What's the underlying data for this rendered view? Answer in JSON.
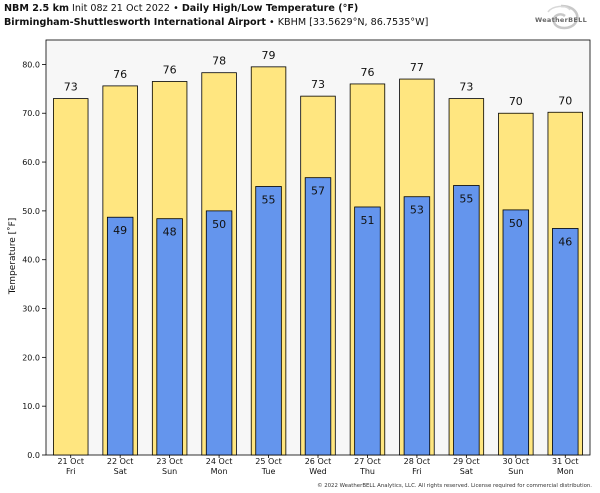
{
  "header": {
    "model": "NBM 2.5 km",
    "init": "Init 08z 21 Oct 2022",
    "product": "Daily High/Low Temperature (°F)",
    "station_name": "Birmingham-Shuttlesworth International Airport",
    "station_info": "KBHM [33.5629°N, 86.7535°W]",
    "bullet": "•"
  },
  "logo": {
    "text": "WeatherBELL"
  },
  "copyright": "© 2022 WeatherBELL Analytics, LLC. All rights reserved. License required for commercial distribution.",
  "colors": {
    "high": "#ffe680",
    "low": "#6495ed",
    "plot_bg": "#f7f7f7",
    "outline": "#000000"
  },
  "chart_data": {
    "type": "bar",
    "title": "Daily High/Low Temperature (°F)",
    "xlabel": "",
    "ylabel": "Temperature [˚F]",
    "ylim": [
      0,
      85
    ],
    "yticks": [
      "0.0",
      "10.0",
      "20.0",
      "30.0",
      "40.0",
      "50.0",
      "60.0",
      "70.0",
      "80.0"
    ],
    "grid": false,
    "categories": [
      {
        "date": "21 Oct",
        "day": "Fri"
      },
      {
        "date": "22 Oct",
        "day": "Sat"
      },
      {
        "date": "23 Oct",
        "day": "Sun"
      },
      {
        "date": "24 Oct",
        "day": "Mon"
      },
      {
        "date": "25 Oct",
        "day": "Tue"
      },
      {
        "date": "26 Oct",
        "day": "Wed"
      },
      {
        "date": "27 Oct",
        "day": "Thu"
      },
      {
        "date": "28 Oct",
        "day": "Fri"
      },
      {
        "date": "29 Oct",
        "day": "Sat"
      },
      {
        "date": "30 Oct",
        "day": "Sun"
      },
      {
        "date": "31 Oct",
        "day": "Mon"
      }
    ],
    "series": [
      {
        "key": "high",
        "values": [
          73,
          75.6,
          76.5,
          78.3,
          79.5,
          73.5,
          76,
          77,
          73,
          70,
          70.2
        ],
        "labels": [
          "73",
          "76",
          "76",
          "78",
          "79",
          "73",
          "76",
          "77",
          "73",
          "70",
          "70"
        ]
      },
      {
        "key": "low",
        "values": [
          null,
          48.7,
          48.4,
          50,
          55,
          56.8,
          50.8,
          52.9,
          55.2,
          50.2,
          46.4
        ],
        "labels": [
          null,
          "49",
          "48",
          "50",
          "55",
          "57",
          "51",
          "53",
          "55",
          "50",
          "46"
        ]
      }
    ]
  }
}
